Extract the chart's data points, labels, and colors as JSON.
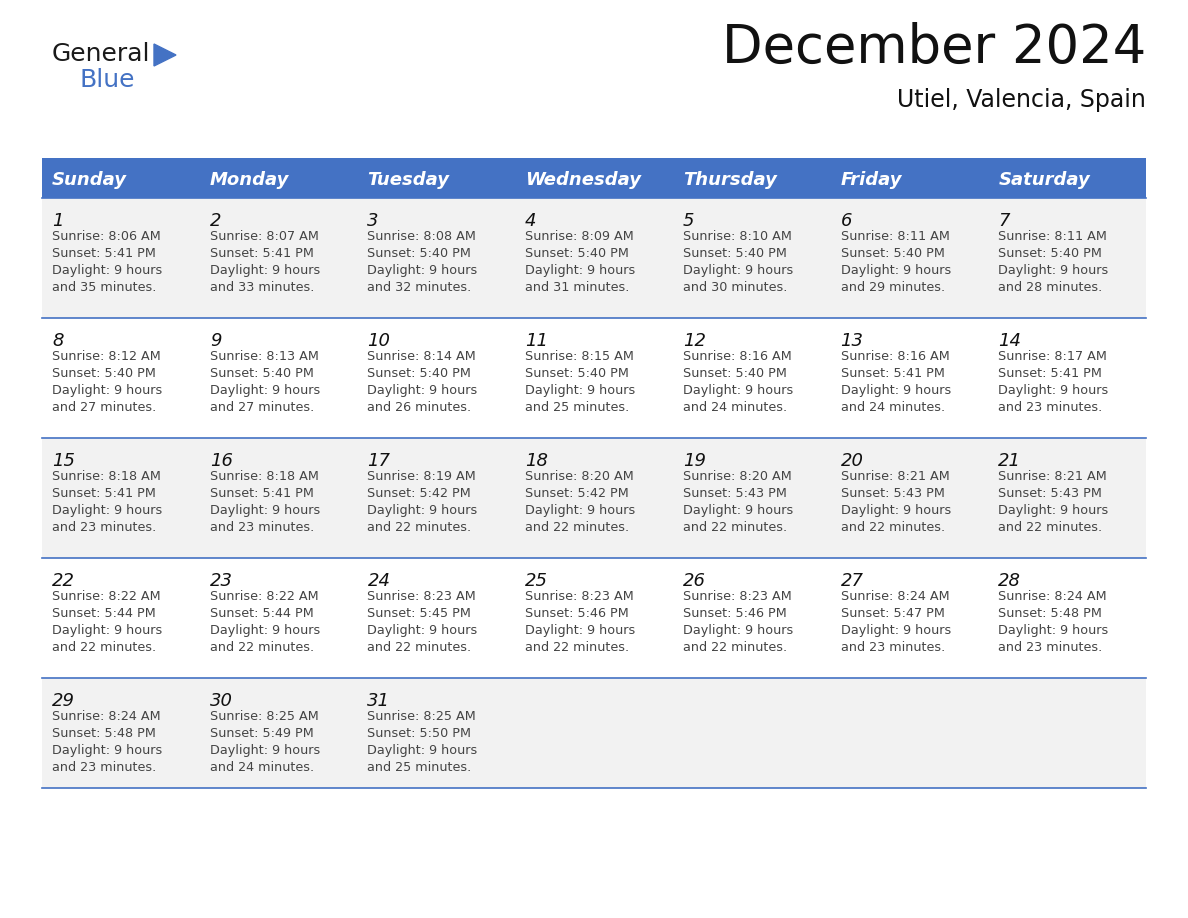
{
  "title": "December 2024",
  "subtitle": "Utiel, Valencia, Spain",
  "header_color": "#4472C4",
  "header_text_color": "#FFFFFF",
  "cell_bg_even": "#F2F2F2",
  "cell_bg_odd": "#FFFFFF",
  "text_color": "#333333",
  "line_color": "#4472C4",
  "days_of_week": [
    "Sunday",
    "Monday",
    "Tuesday",
    "Wednesday",
    "Thursday",
    "Friday",
    "Saturday"
  ],
  "weeks": [
    [
      {
        "day": 1,
        "sunrise": "8:06 AM",
        "sunset": "5:41 PM",
        "daylight": "9 hours and 35 minutes."
      },
      {
        "day": 2,
        "sunrise": "8:07 AM",
        "sunset": "5:41 PM",
        "daylight": "9 hours and 33 minutes."
      },
      {
        "day": 3,
        "sunrise": "8:08 AM",
        "sunset": "5:40 PM",
        "daylight": "9 hours and 32 minutes."
      },
      {
        "day": 4,
        "sunrise": "8:09 AM",
        "sunset": "5:40 PM",
        "daylight": "9 hours and 31 minutes."
      },
      {
        "day": 5,
        "sunrise": "8:10 AM",
        "sunset": "5:40 PM",
        "daylight": "9 hours and 30 minutes."
      },
      {
        "day": 6,
        "sunrise": "8:11 AM",
        "sunset": "5:40 PM",
        "daylight": "9 hours and 29 minutes."
      },
      {
        "day": 7,
        "sunrise": "8:11 AM",
        "sunset": "5:40 PM",
        "daylight": "9 hours and 28 minutes."
      }
    ],
    [
      {
        "day": 8,
        "sunrise": "8:12 AM",
        "sunset": "5:40 PM",
        "daylight": "9 hours and 27 minutes."
      },
      {
        "day": 9,
        "sunrise": "8:13 AM",
        "sunset": "5:40 PM",
        "daylight": "9 hours and 27 minutes."
      },
      {
        "day": 10,
        "sunrise": "8:14 AM",
        "sunset": "5:40 PM",
        "daylight": "9 hours and 26 minutes."
      },
      {
        "day": 11,
        "sunrise": "8:15 AM",
        "sunset": "5:40 PM",
        "daylight": "9 hours and 25 minutes."
      },
      {
        "day": 12,
        "sunrise": "8:16 AM",
        "sunset": "5:40 PM",
        "daylight": "9 hours and 24 minutes."
      },
      {
        "day": 13,
        "sunrise": "8:16 AM",
        "sunset": "5:41 PM",
        "daylight": "9 hours and 24 minutes."
      },
      {
        "day": 14,
        "sunrise": "8:17 AM",
        "sunset": "5:41 PM",
        "daylight": "9 hours and 23 minutes."
      }
    ],
    [
      {
        "day": 15,
        "sunrise": "8:18 AM",
        "sunset": "5:41 PM",
        "daylight": "9 hours and 23 minutes."
      },
      {
        "day": 16,
        "sunrise": "8:18 AM",
        "sunset": "5:41 PM",
        "daylight": "9 hours and 23 minutes."
      },
      {
        "day": 17,
        "sunrise": "8:19 AM",
        "sunset": "5:42 PM",
        "daylight": "9 hours and 22 minutes."
      },
      {
        "day": 18,
        "sunrise": "8:20 AM",
        "sunset": "5:42 PM",
        "daylight": "9 hours and 22 minutes."
      },
      {
        "day": 19,
        "sunrise": "8:20 AM",
        "sunset": "5:43 PM",
        "daylight": "9 hours and 22 minutes."
      },
      {
        "day": 20,
        "sunrise": "8:21 AM",
        "sunset": "5:43 PM",
        "daylight": "9 hours and 22 minutes."
      },
      {
        "day": 21,
        "sunrise": "8:21 AM",
        "sunset": "5:43 PM",
        "daylight": "9 hours and 22 minutes."
      }
    ],
    [
      {
        "day": 22,
        "sunrise": "8:22 AM",
        "sunset": "5:44 PM",
        "daylight": "9 hours and 22 minutes."
      },
      {
        "day": 23,
        "sunrise": "8:22 AM",
        "sunset": "5:44 PM",
        "daylight": "9 hours and 22 minutes."
      },
      {
        "day": 24,
        "sunrise": "8:23 AM",
        "sunset": "5:45 PM",
        "daylight": "9 hours and 22 minutes."
      },
      {
        "day": 25,
        "sunrise": "8:23 AM",
        "sunset": "5:46 PM",
        "daylight": "9 hours and 22 minutes."
      },
      {
        "day": 26,
        "sunrise": "8:23 AM",
        "sunset": "5:46 PM",
        "daylight": "9 hours and 22 minutes."
      },
      {
        "day": 27,
        "sunrise": "8:24 AM",
        "sunset": "5:47 PM",
        "daylight": "9 hours and 23 minutes."
      },
      {
        "day": 28,
        "sunrise": "8:24 AM",
        "sunset": "5:48 PM",
        "daylight": "9 hours and 23 minutes."
      }
    ],
    [
      {
        "day": 29,
        "sunrise": "8:24 AM",
        "sunset": "5:48 PM",
        "daylight": "9 hours and 23 minutes."
      },
      {
        "day": 30,
        "sunrise": "8:25 AM",
        "sunset": "5:49 PM",
        "daylight": "9 hours and 24 minutes."
      },
      {
        "day": 31,
        "sunrise": "8:25 AM",
        "sunset": "5:50 PM",
        "daylight": "9 hours and 25 minutes."
      },
      null,
      null,
      null,
      null
    ]
  ],
  "logo_text_general": "General",
  "logo_text_blue": "Blue",
  "logo_triangle_color": "#4472C4",
  "figwidth": 11.88,
  "figheight": 9.18,
  "dpi": 100
}
